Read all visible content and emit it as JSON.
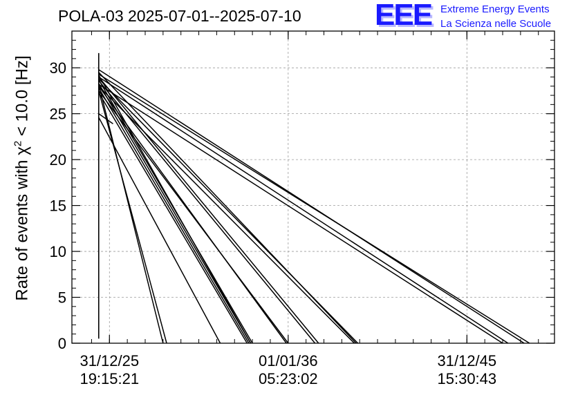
{
  "header": {
    "title": "POLA-03 2025-07-01--2025-07-10"
  },
  "logo": {
    "mark": "EEE",
    "line1": "Extreme Energy Events",
    "line2": "La Scienza nelle Scuole",
    "color": "#1a1aff"
  },
  "chart_data": {
    "type": "line",
    "title": "POLA-03 2025-07-01--2025-07-10",
    "ylabel_prefix": "Rate of events with ",
    "ylabel_symbol": "χ",
    "ylabel_sup": "2",
    "ylabel_suffix": " < 10.0 [Hz]",
    "ylim": [
      0,
      34
    ],
    "yticks": [
      {
        "value": 0,
        "label": "0"
      },
      {
        "value": 5,
        "label": "5"
      },
      {
        "value": 10,
        "label": "10"
      },
      {
        "value": 15,
        "label": "15"
      },
      {
        "value": 20,
        "label": "20"
      },
      {
        "value": 25,
        "label": "25"
      },
      {
        "value": 30,
        "label": "30"
      }
    ],
    "xlim": [
      0,
      27
    ],
    "xticks": [
      {
        "value": 2.1,
        "line1": "31/12/25",
        "line2": "19:15:21"
      },
      {
        "value": 12.1,
        "line1": "01/01/36",
        "line2": "05:23:02"
      },
      {
        "value": 22.1,
        "line1": "31/12/45",
        "line2": "15:30:43"
      }
    ],
    "grid": true,
    "x_unit": "years after first point",
    "vertical_spike": {
      "x": 1.5,
      "y_min": 0.5,
      "y_max": 31.6
    },
    "series": [
      {
        "x": [
          1.5,
          5.3
        ],
        "y": [
          27.5,
          0
        ]
      },
      {
        "x": [
          1.5,
          5.1
        ],
        "y": [
          28.2,
          0
        ]
      },
      {
        "x": [
          1.5,
          9.8
        ],
        "y": [
          27.3,
          0
        ]
      },
      {
        "x": [
          1.5,
          9.9
        ],
        "y": [
          27.8,
          0
        ]
      },
      {
        "x": [
          1.5,
          10.0
        ],
        "y": [
          28.3,
          0
        ]
      },
      {
        "x": [
          1.5,
          10.1
        ],
        "y": [
          28.7,
          0
        ]
      },
      {
        "x": [
          1.5,
          10.0
        ],
        "y": [
          29.2,
          0
        ]
      },
      {
        "x": [
          1.5,
          12.0
        ],
        "y": [
          28.0,
          0
        ]
      },
      {
        "x": [
          1.5,
          12.1
        ],
        "y": [
          27.5,
          0
        ]
      },
      {
        "x": [
          1.5,
          13.6
        ],
        "y": [
          28.6,
          0
        ]
      },
      {
        "x": [
          1.5,
          13.8
        ],
        "y": [
          29.0,
          0
        ]
      },
      {
        "x": [
          1.5,
          15.8
        ],
        "y": [
          28.0,
          0
        ]
      },
      {
        "x": [
          1.5,
          16.0
        ],
        "y": [
          28.8,
          0
        ]
      },
      {
        "x": [
          1.5,
          15.9
        ],
        "y": [
          29.5,
          0
        ]
      },
      {
        "x": [
          1.5,
          24.1
        ],
        "y": [
          28.2,
          0
        ]
      },
      {
        "x": [
          1.5,
          24.4
        ],
        "y": [
          29.0,
          0
        ]
      },
      {
        "x": [
          1.5,
          25.3
        ],
        "y": [
          29.8,
          0
        ]
      },
      {
        "x": [
          1.5,
          25.6
        ],
        "y": [
          29.3,
          0
        ]
      },
      {
        "x": [
          1.5,
          8.3
        ],
        "y": [
          24.6,
          0
        ]
      },
      {
        "x": [
          1.5,
          2.3
        ],
        "y": [
          25.0,
          23.9
        ]
      }
    ]
  }
}
